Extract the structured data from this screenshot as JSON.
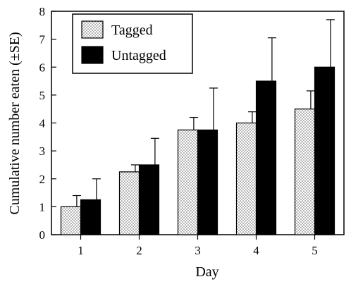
{
  "chart_data": {
    "type": "bar",
    "categories": [
      "1",
      "2",
      "3",
      "4",
      "5"
    ],
    "series": [
      {
        "name": "Tagged",
        "values": [
          1.0,
          2.25,
          3.75,
          4.0,
          4.5
        ],
        "se": [
          0.4,
          0.25,
          0.45,
          0.4,
          0.65
        ],
        "pattern": "dotted",
        "color": "#e6e6e6"
      },
      {
        "name": "Untagged",
        "values": [
          1.25,
          2.5,
          3.75,
          5.5,
          6.0
        ],
        "se": [
          0.75,
          0.95,
          1.5,
          1.55,
          1.7
        ],
        "pattern": "solid",
        "color": "#000000"
      }
    ],
    "xlabel": "Day",
    "ylabel": "Cumulative number eaten (±SE)",
    "ylim": [
      0,
      8
    ],
    "yticks": [
      "0",
      "1",
      "2",
      "3",
      "4",
      "5",
      "6",
      "7",
      "8"
    ],
    "grid": false,
    "legend": "top-left"
  }
}
